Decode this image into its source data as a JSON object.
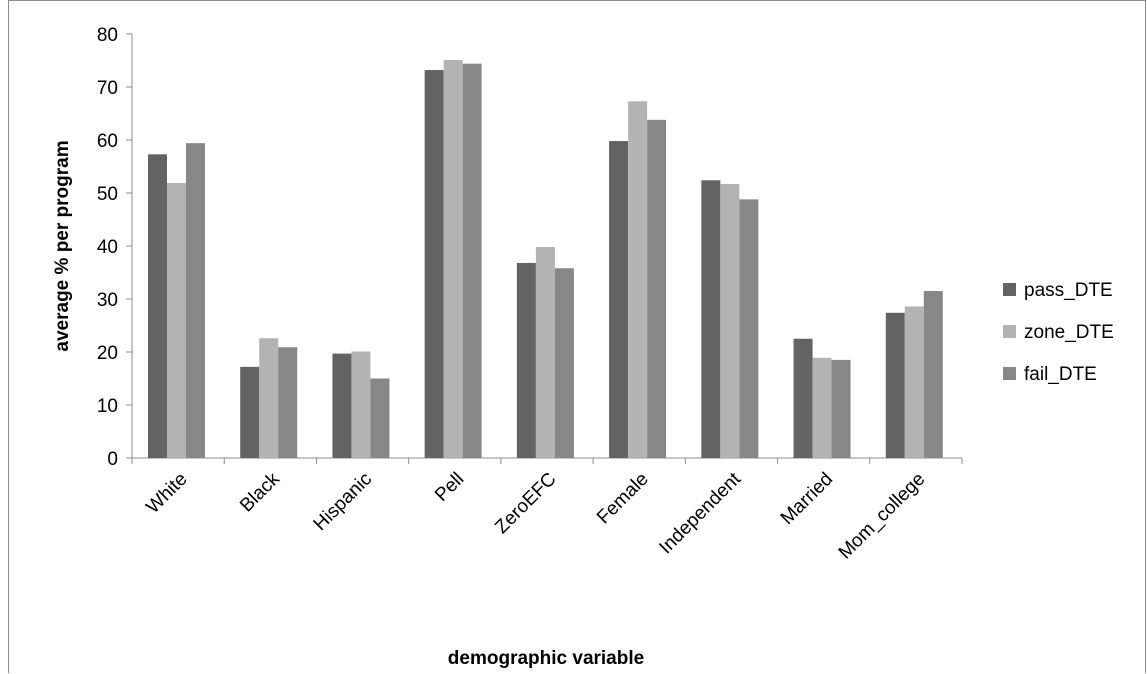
{
  "chart_data": {
    "type": "bar",
    "categories": [
      "White",
      "Black",
      "Hispanic",
      "Pell",
      "ZeroEFC",
      "Female",
      "Independent",
      "Married",
      "Mom_college"
    ],
    "series": [
      {
        "name": "pass_DTE",
        "color": "#636363",
        "values": [
          57.3,
          17.2,
          19.7,
          73.2,
          36.8,
          59.8,
          52.4,
          22.5,
          27.4
        ]
      },
      {
        "name": "zone_DTE",
        "color": "#b3b3b3",
        "values": [
          51.9,
          22.6,
          20.1,
          75.1,
          39.8,
          67.3,
          51.7,
          18.9,
          28.6
        ]
      },
      {
        "name": "fail_DTE",
        "color": "#878787",
        "values": [
          59.4,
          20.9,
          15.0,
          74.4,
          35.8,
          63.8,
          48.8,
          18.5,
          31.5
        ]
      }
    ],
    "yticks": [
      "0",
      "10",
      "20",
      "30",
      "40",
      "50",
      "60",
      "70",
      "80"
    ],
    "ylim": [
      0,
      80
    ],
    "xlabel": "demographic variable",
    "ylabel": "average % per program",
    "legend_position": "right",
    "grid": false
  }
}
